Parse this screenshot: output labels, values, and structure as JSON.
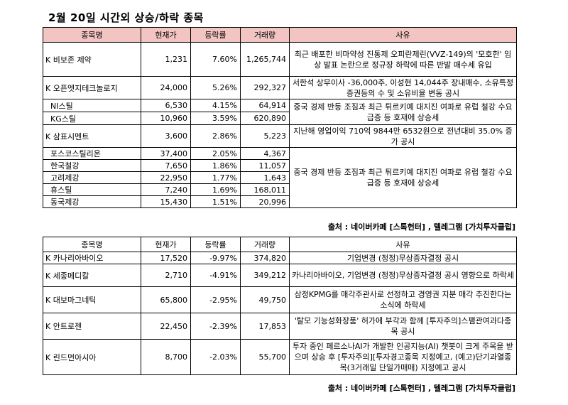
{
  "title": "2월 20일  시간외 상승/하락 종목",
  "headers": [
    "종목명",
    "현재가",
    "등락률",
    "거래량",
    "사유"
  ],
  "rising": {
    "rows": [
      {
        "name": "K 비보존 제약",
        "price": "1,231",
        "rate": "7.60%",
        "volume": "1,265,744"
      },
      {
        "name": "K 오픈엣지테크놀로지",
        "price": "24,000",
        "rate": "5.26%",
        "volume": "292,327"
      },
      {
        "name": "NI스틸",
        "price": "6,530",
        "rate": "4.15%",
        "volume": "64,914"
      },
      {
        "name": "KG스틸",
        "price": "10,960",
        "rate": "3.59%",
        "volume": "620,890"
      },
      {
        "name": "K 삼표시멘트",
        "price": "3,600",
        "rate": "2.86%",
        "volume": "5,223"
      },
      {
        "name": "포스코스틸리온",
        "price": "37,400",
        "rate": "2.05%",
        "volume": "4,367"
      },
      {
        "name": "한국철강",
        "price": "7,650",
        "rate": "1.86%",
        "volume": "11,057"
      },
      {
        "name": "고려제강",
        "price": "22,950",
        "rate": "1.77%",
        "volume": "1,643"
      },
      {
        "name": "휴스틸",
        "price": "7,240",
        "rate": "1.69%",
        "volume": "168,011"
      },
      {
        "name": "동국제강",
        "price": "15,430",
        "rate": "1.51%",
        "volume": "20,996"
      }
    ],
    "reasons": {
      "r1": "최근 배포한 비마약성 진통제 오피란제린(VVZ-149)의 '모호한' 임상 발표 논란으로 정규장 하락에 따른 반발 매수세 유입",
      "r2": "서한석 상무이사 -36,000주, 이성현 14,044주 장내매수, 소유특정증권등의 수 및 소유비율 변동 공시",
      "r3": "중국 경제 반등 조짐과 최근 튀르키예 대지진 여파로 유럽 철강 수요 급증 등 호재에 상승세",
      "r4": "지난해 영업이익 710억 9844만 6532원으로 전년대비 35.0% 증가 공시",
      "r5": "중국 경제 반등 조짐과 최근 튀르키예 대지진 여파로 유럽 철강 수요 급증 등 호재에 상승세"
    }
  },
  "falling": {
    "rows": [
      {
        "name": "K 카나리아바이오",
        "price": "17,520",
        "rate": "-9.97%",
        "volume": "374,820",
        "reason": "기업변경 (정정)무상증자결정 공시"
      },
      {
        "name": "K 세종메디칼",
        "price": "2,710",
        "rate": "-4.91%",
        "volume": "349,212",
        "reason": "카나리아바이오, 기업변경 (정정)무상증자결정 공시 영향으로 하락세"
      },
      {
        "name": "K 대보마그네틱",
        "price": "65,800",
        "rate": "-2.95%",
        "volume": "49,750",
        "reason": "삼정KPMG를 매각주관사로 선정하고 경영권 지분 매각 추진한다는 소식에 하락세"
      },
      {
        "name": "K 안트로젠",
        "price": "22,450",
        "rate": "-2.39%",
        "volume": "17,853",
        "reason": "'탈모 기능성화장품' 허가에 부각과 함께 [투자주의]스팸관여과다종목 공시"
      },
      {
        "name": "K 린드먼아시아",
        "price": "8,700",
        "rate": "-2.03%",
        "volume": "55,700",
        "reason": "투자 중인 페르소나AI가 개발한 인공지능(AI) 챗봇이 크게 주목을 받으며 상승 후 [투자주의][투자경고종목 지정예고, (예고)단기과열종목(3거래일 단일가매매) 지정예고 공시"
      }
    ]
  },
  "source": "출처 : 네이버카페 [스톡헌터] , 텔레그램 [가치투자클럽]",
  "colors": {
    "header_bg_top": "#f2c4c2",
    "header_bg_bottom": "#ffffff"
  }
}
